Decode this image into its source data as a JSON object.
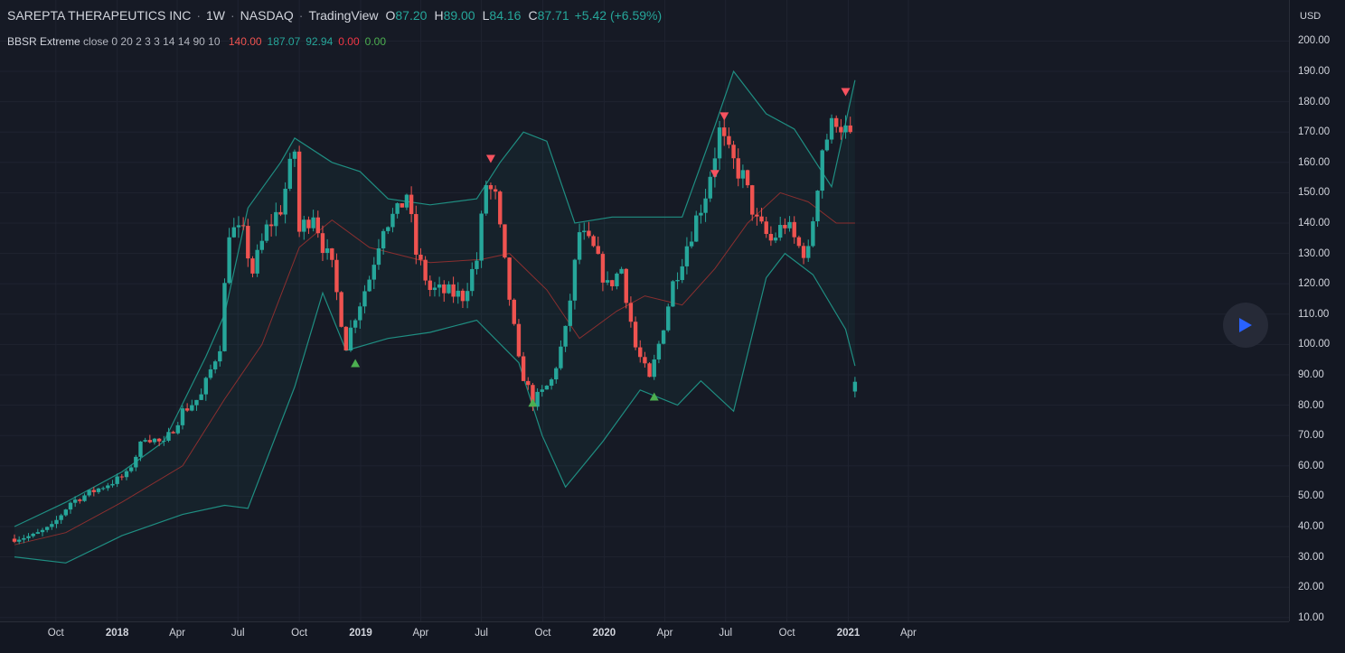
{
  "header": {
    "symbol_name": "SAREPTA THERAPEUTICS INC",
    "interval": "1W",
    "exchange": "NASDAQ",
    "source": "TradingView",
    "ohlc": {
      "o_label": "O",
      "o": "87.20",
      "h_label": "H",
      "h": "89.00",
      "l_label": "L",
      "l": "84.16",
      "c_label": "C",
      "c": "87.71",
      "change": "+5.42 (+6.59%)"
    }
  },
  "indicator": {
    "name": "BBSR Extreme",
    "params": "close 0 20 2 3 3 14 14 90 10",
    "values": [
      "140.00",
      "187.07",
      "92.94",
      "0.00",
      "0.00"
    ],
    "value_colors": [
      "#ef5350",
      "#26a69a",
      "#26a69a",
      "#f23645",
      "#4caf50"
    ]
  },
  "price_axis": {
    "currency": "USD",
    "ticks": [
      "200.00",
      "190.00",
      "180.00",
      "170.00",
      "160.00",
      "150.00",
      "140.00",
      "130.00",
      "120.00",
      "110.00",
      "100.00",
      "90.00",
      "80.00",
      "70.00",
      "60.00",
      "50.00",
      "40.00",
      "30.00",
      "20.00",
      "10.00"
    ]
  },
  "time_axis": {
    "ticks": [
      {
        "label": "Oct",
        "bold": false
      },
      {
        "label": "2018",
        "bold": true
      },
      {
        "label": "Apr",
        "bold": false
      },
      {
        "label": "Jul",
        "bold": false
      },
      {
        "label": "Oct",
        "bold": false
      },
      {
        "label": "2019",
        "bold": true
      },
      {
        "label": "Apr",
        "bold": false
      },
      {
        "label": "Jul",
        "bold": false
      },
      {
        "label": "Oct",
        "bold": false
      },
      {
        "label": "2020",
        "bold": true
      },
      {
        "label": "Apr",
        "bold": false
      },
      {
        "label": "Jul",
        "bold": false
      },
      {
        "label": "Oct",
        "bold": false
      },
      {
        "label": "2021",
        "bold": true
      },
      {
        "label": "Apr",
        "bold": false
      }
    ]
  },
  "colors": {
    "background": "#161a25",
    "up": "#26a69a",
    "down": "#ef5350",
    "band": "#1f8e82",
    "basis": "#8b2f2f",
    "signal_up": "#4caf50",
    "signal_down": "#f7525f",
    "grid": "#1f2330"
  },
  "play_button": {
    "icon": "play-icon"
  },
  "chart_data": {
    "type": "candlestick",
    "ylim": [
      10,
      205
    ],
    "y_scale": "linear",
    "grid": true,
    "series": [
      {
        "name": "price",
        "kind": "candlestick",
        "close_path": [
          [
            "2017-07-31",
            36
          ],
          [
            "2017-08-28",
            37
          ],
          [
            "2017-09-25",
            40
          ],
          [
            "2017-10-23",
            48
          ],
          [
            "2017-11-20",
            51
          ],
          [
            "2017-12-18",
            54
          ],
          [
            "2018-01-15",
            57
          ],
          [
            "2018-02-12",
            70
          ],
          [
            "2018-03-12",
            67
          ],
          [
            "2018-04-09",
            78
          ],
          [
            "2018-05-07",
            83
          ],
          [
            "2018-06-04",
            100
          ],
          [
            "2018-06-18",
            138
          ],
          [
            "2018-07-09",
            136
          ],
          [
            "2018-07-23",
            124
          ],
          [
            "2018-08-13",
            138
          ],
          [
            "2018-09-03",
            145
          ],
          [
            "2018-09-24",
            164
          ],
          [
            "2018-10-01",
            137
          ],
          [
            "2018-10-22",
            144
          ],
          [
            "2018-11-05",
            133
          ],
          [
            "2018-11-19",
            125
          ],
          [
            "2018-12-10",
            100
          ],
          [
            "2018-12-24",
            110
          ],
          [
            "2019-01-14",
            122
          ],
          [
            "2019-02-04",
            140
          ],
          [
            "2019-02-25",
            143
          ],
          [
            "2019-03-11",
            150
          ],
          [
            "2019-03-25",
            130
          ],
          [
            "2019-04-15",
            118
          ],
          [
            "2019-05-13",
            117
          ],
          [
            "2019-06-03",
            116
          ],
          [
            "2019-06-24",
            128
          ],
          [
            "2019-07-08",
            153
          ],
          [
            "2019-07-22",
            148
          ],
          [
            "2019-08-05",
            126
          ],
          [
            "2019-08-26",
            94
          ],
          [
            "2019-09-16",
            81
          ],
          [
            "2019-09-30",
            84
          ],
          [
            "2019-10-14",
            88
          ],
          [
            "2019-11-04",
            104
          ],
          [
            "2019-11-25",
            137
          ],
          [
            "2019-12-16",
            131
          ],
          [
            "2020-01-06",
            119
          ],
          [
            "2020-01-27",
            125
          ],
          [
            "2020-02-17",
            99
          ],
          [
            "2020-03-09",
            88
          ],
          [
            "2020-03-23",
            100
          ],
          [
            "2020-04-13",
            120
          ],
          [
            "2020-05-04",
            133
          ],
          [
            "2020-06-01",
            150
          ],
          [
            "2020-06-22",
            170
          ],
          [
            "2020-07-06",
            162
          ],
          [
            "2020-07-27",
            155
          ],
          [
            "2020-08-17",
            140
          ],
          [
            "2020-09-07",
            134
          ],
          [
            "2020-09-28",
            140
          ],
          [
            "2020-10-19",
            132
          ],
          [
            "2020-11-02",
            130
          ],
          [
            "2020-11-23",
            165
          ],
          [
            "2020-12-14",
            175
          ],
          [
            "2020-12-28",
            170
          ],
          [
            "2021-01-11",
            87.71
          ]
        ]
      },
      {
        "name": "upper band",
        "kind": "line",
        "points": [
          [
            "2017-07-31",
            40
          ],
          [
            "2017-10-16",
            48
          ],
          [
            "2018-01-08",
            58
          ],
          [
            "2018-03-12",
            68
          ],
          [
            "2018-05-14",
            96
          ],
          [
            "2018-06-11",
            110
          ],
          [
            "2018-07-16",
            145
          ],
          [
            "2018-09-03",
            160
          ],
          [
            "2018-09-24",
            168
          ],
          [
            "2018-11-19",
            160
          ],
          [
            "2018-12-31",
            157
          ],
          [
            "2019-02-11",
            148
          ],
          [
            "2019-04-15",
            146
          ],
          [
            "2019-06-24",
            148
          ],
          [
            "2019-07-29",
            160
          ],
          [
            "2019-09-02",
            170
          ],
          [
            "2019-10-07",
            167
          ],
          [
            "2019-11-18",
            140
          ],
          [
            "2020-01-13",
            142
          ],
          [
            "2020-03-02",
            142
          ],
          [
            "2020-04-27",
            142
          ],
          [
            "2020-06-15",
            172
          ],
          [
            "2020-07-13",
            190
          ],
          [
            "2020-08-31",
            176
          ],
          [
            "2020-10-12",
            171
          ],
          [
            "2020-12-07",
            152
          ],
          [
            "2021-01-11",
            187.07
          ]
        ]
      },
      {
        "name": "lower band",
        "kind": "line",
        "points": [
          [
            "2017-07-31",
            30
          ],
          [
            "2017-10-16",
            28
          ],
          [
            "2018-01-08",
            37
          ],
          [
            "2018-04-09",
            44
          ],
          [
            "2018-06-11",
            47
          ],
          [
            "2018-07-16",
            46
          ],
          [
            "2018-09-24",
            86
          ],
          [
            "2018-11-05",
            117
          ],
          [
            "2018-12-10",
            98
          ],
          [
            "2019-02-11",
            102
          ],
          [
            "2019-04-15",
            104
          ],
          [
            "2019-06-24",
            108
          ],
          [
            "2019-08-26",
            94
          ],
          [
            "2019-09-30",
            70
          ],
          [
            "2019-11-04",
            53
          ],
          [
            "2019-12-30",
            68
          ],
          [
            "2020-02-24",
            85
          ],
          [
            "2020-04-20",
            80
          ],
          [
            "2020-05-25",
            88
          ],
          [
            "2020-07-13",
            78
          ],
          [
            "2020-08-31",
            122
          ],
          [
            "2020-09-28",
            130
          ],
          [
            "2020-11-09",
            123
          ],
          [
            "2020-12-28",
            105
          ],
          [
            "2021-01-11",
            92.94
          ]
        ]
      },
      {
        "name": "basis",
        "kind": "line",
        "points": [
          [
            "2017-07-31",
            34
          ],
          [
            "2017-10-16",
            38
          ],
          [
            "2018-01-08",
            48
          ],
          [
            "2018-04-09",
            60
          ],
          [
            "2018-06-11",
            82
          ],
          [
            "2018-08-06",
            100
          ],
          [
            "2018-10-01",
            132
          ],
          [
            "2018-11-19",
            141
          ],
          [
            "2019-01-14",
            132
          ],
          [
            "2019-04-15",
            127
          ],
          [
            "2019-07-01",
            128
          ],
          [
            "2019-08-12",
            130
          ],
          [
            "2019-10-07",
            118
          ],
          [
            "2019-11-25",
            102
          ],
          [
            "2020-01-20",
            111
          ],
          [
            "2020-03-02",
            116
          ],
          [
            "2020-04-27",
            113
          ],
          [
            "2020-06-15",
            125
          ],
          [
            "2020-08-03",
            140
          ],
          [
            "2020-09-21",
            150
          ],
          [
            "2020-11-02",
            147
          ],
          [
            "2020-12-14",
            140
          ],
          [
            "2021-01-11",
            140
          ]
        ]
      }
    ],
    "signals": [
      {
        "date": "2018-12-24",
        "type": "buy",
        "price": 94
      },
      {
        "date": "2019-07-15",
        "type": "sell",
        "price": 161
      },
      {
        "date": "2019-09-16",
        "type": "buy",
        "price": 81
      },
      {
        "date": "2020-03-16",
        "type": "buy",
        "price": 83
      },
      {
        "date": "2020-06-15",
        "type": "sell",
        "price": 156
      },
      {
        "date": "2020-06-29",
        "type": "sell",
        "price": 175
      },
      {
        "date": "2020-12-28",
        "type": "sell",
        "price": 183
      }
    ]
  }
}
